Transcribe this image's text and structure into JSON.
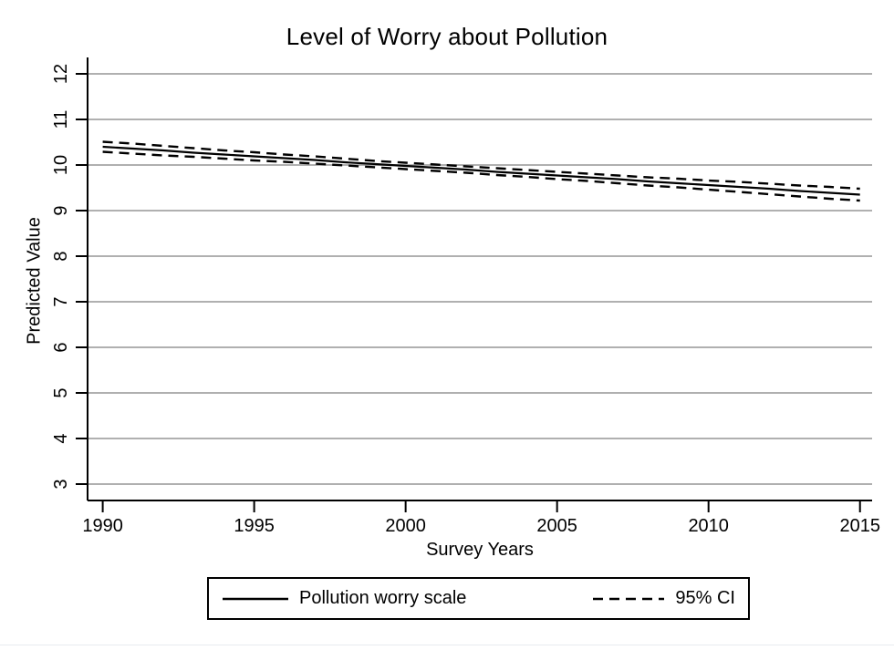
{
  "title": "Level of Worry about Pollution",
  "colors": {
    "line": "#000000",
    "grid": "#b0b0b0",
    "axis": "#000000",
    "background": "#ffffff",
    "bottom_rule": "#e8ebef"
  },
  "legend": {
    "entries": [
      {
        "label": "Pollution worry scale",
        "style": "solid"
      },
      {
        "label": "95% CI",
        "style": "dashed"
      }
    ]
  },
  "chart_data": {
    "type": "line",
    "title": "Level of Worry about Pollution",
    "xlabel": "Survey Years",
    "ylabel": "Predicted Value",
    "xlim": [
      1989.5,
      2015.4
    ],
    "ylim": [
      2.64,
      12.36
    ],
    "xticks": [
      1990,
      1995,
      2000,
      2005,
      2010,
      2015
    ],
    "yticks": [
      3,
      4,
      5,
      6,
      7,
      8,
      9,
      10,
      11,
      12
    ],
    "grid": "horizontal-only",
    "legend_position": "bottom-center",
    "x": [
      1990,
      1991,
      1992,
      1993,
      1994,
      1995,
      1996,
      1997,
      1998,
      1999,
      2000,
      2001,
      2002,
      2003,
      2004,
      2005,
      2006,
      2007,
      2008,
      2009,
      2010,
      2011,
      2012,
      2013,
      2014,
      2015
    ],
    "series": [
      {
        "name": "Pollution worry scale",
        "style": "solid",
        "values": [
          10.4,
          10.36,
          10.32,
          10.27,
          10.23,
          10.19,
          10.15,
          10.11,
          10.06,
          10.02,
          9.98,
          9.94,
          9.9,
          9.85,
          9.81,
          9.77,
          9.73,
          9.69,
          9.64,
          9.6,
          9.56,
          9.52,
          9.48,
          9.43,
          9.39,
          9.35
        ]
      },
      {
        "name": "95% CI upper",
        "style": "dashed",
        "values": [
          10.51,
          10.47,
          10.42,
          10.37,
          10.32,
          10.28,
          10.23,
          10.19,
          10.14,
          10.09,
          10.05,
          10.01,
          9.97,
          9.93,
          9.89,
          9.85,
          9.81,
          9.77,
          9.73,
          9.7,
          9.66,
          9.63,
          9.59,
          9.55,
          9.52,
          9.48
        ]
      },
      {
        "name": "95% CI lower",
        "style": "dashed",
        "values": [
          10.29,
          10.25,
          10.21,
          10.18,
          10.14,
          10.1,
          10.07,
          10.03,
          9.99,
          9.95,
          9.91,
          9.87,
          9.83,
          9.78,
          9.74,
          9.69,
          9.65,
          9.6,
          9.55,
          9.51,
          9.46,
          9.41,
          9.36,
          9.31,
          9.26,
          9.22
        ]
      }
    ]
  }
}
